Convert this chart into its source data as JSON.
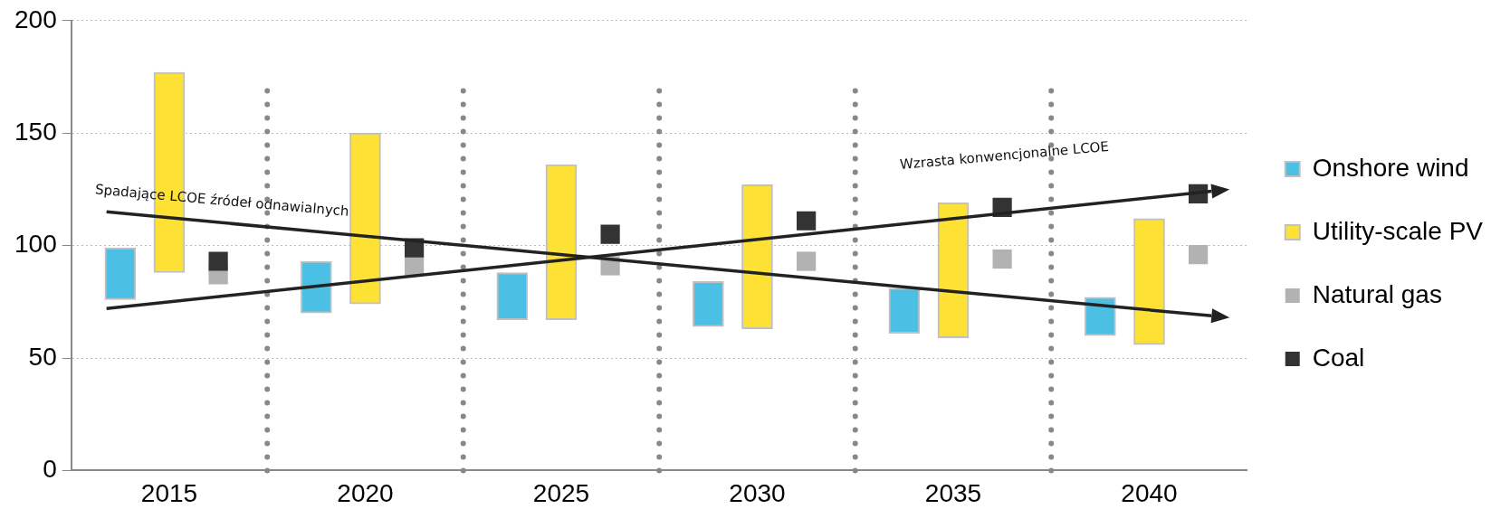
{
  "chart_data": {
    "type": "bar",
    "categories": [
      "2015",
      "2020",
      "2025",
      "2030",
      "2035",
      "2040"
    ],
    "series": [
      {
        "name": "Onshore wind",
        "color": "#4bc0e4",
        "base": [
          76,
          70,
          67,
          64,
          61,
          60
        ],
        "values": [
          23,
          23,
          21,
          20,
          20,
          17
        ]
      },
      {
        "name": "Utility-scale PV",
        "color": "#fde135",
        "base": [
          88,
          74,
          67,
          63,
          59,
          56
        ],
        "values": [
          89,
          76,
          69,
          64,
          60,
          56
        ]
      },
      {
        "name": "Natural gas",
        "type": "scatter",
        "color": "#b2b2b2",
        "values": [
          87,
          91,
          91,
          93,
          94,
          96
        ]
      },
      {
        "name": "Coal",
        "type": "scatter",
        "color": "#333333",
        "values": [
          93,
          99,
          105,
          111,
          117,
          123
        ]
      }
    ],
    "marker": "square",
    "ylim": [
      0,
      200
    ],
    "yticks": [
      0,
      50,
      100,
      150,
      200
    ],
    "grid": true,
    "legend": "right",
    "annotations": [
      "Spadające LCOE źródeł odnawialnych",
      "Wzrasta konwencjonalne LCOE"
    ]
  }
}
